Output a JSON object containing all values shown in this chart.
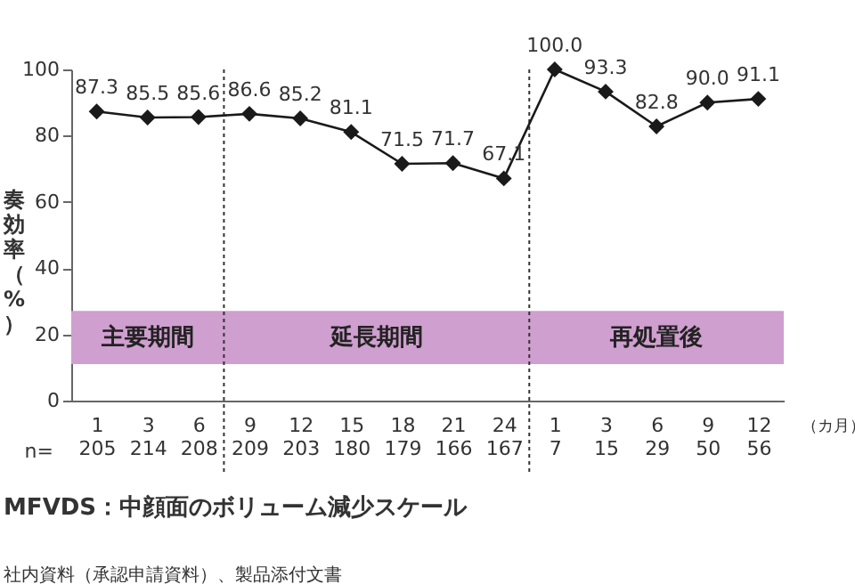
{
  "chart_data": {
    "type": "line",
    "ylabel": "奏効率（%）",
    "categories": [
      "1\n205",
      "3\n214",
      "6\n208",
      "9\n209",
      "12\n203",
      "15\n180",
      "18\n179",
      "21\n166",
      "24\n167",
      "1\n7",
      "3\n15",
      "6\n29",
      "9\n50",
      "12\n56"
    ],
    "series": [
      {
        "color": "#1a1a1a",
        "values": [
          87.3,
          85.5,
          85.6,
          86.6,
          85.2,
          81.1,
          71.5,
          71.7,
          67.1,
          100.0,
          93.3,
          82.8,
          90.0,
          91.1
        ],
        "value_labels": [
          "87.3",
          "85.5",
          "85.6",
          "86.6",
          "85.2",
          "81.1",
          "71.5",
          "71.7",
          "67.1",
          "100.0",
          "93.3",
          "82.8",
          "90.0",
          "91.1"
        ]
      }
    ],
    "ylim": [
      0,
      100
    ],
    "yticks": [
      0,
      20,
      40,
      60,
      80,
      100
    ],
    "grid": false,
    "marker": "diamond",
    "line_style": "solid",
    "bands": [
      {
        "axis": "y",
        "from": 11,
        "to": 27,
        "color": "#cf9fcf"
      },
      {
        "axis": "x",
        "from": "1\n205",
        "to": "6\n208",
        "label": "主要期間",
        "color": "#cf9fcf"
      },
      {
        "axis": "x",
        "from": "9\n209",
        "to": "24\n167",
        "label": "延長期間",
        "color": "#cf9fcf"
      },
      {
        "axis": "x",
        "from": "1\n7",
        "to": "12\n56",
        "label": "再処置後",
        "color": "#cf9fcf"
      }
    ],
    "annotations": [
      "n=",
      "（カ月）",
      "MFVDS：中顔面のボリューム減少スケール",
      "社内資料（承認申請資料）、製品添付文書"
    ]
  }
}
